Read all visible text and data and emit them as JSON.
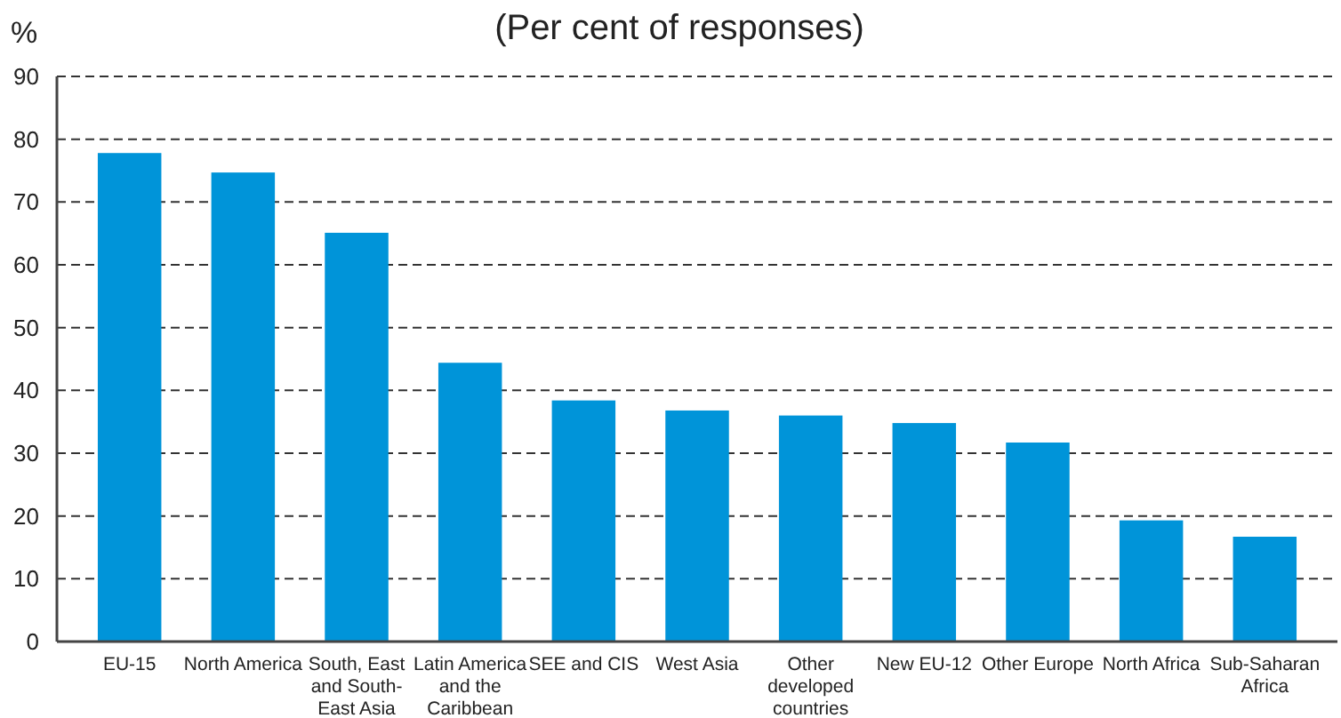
{
  "chart_data": {
    "type": "bar",
    "title": "(Per cent of responses)",
    "ylabel": "%",
    "categories": [
      "EU-15",
      "North America",
      "South, East and South-East Asia",
      "Latin America and the Caribbean",
      "SEE and CIS",
      "West Asia",
      "Other developed countries",
      "New EU-12",
      "Other Europe",
      "North Africa",
      "Sub-Saharan Africa"
    ],
    "values": [
      77.8,
      74.7,
      65.1,
      44.4,
      38.4,
      36.8,
      36.0,
      34.8,
      31.7,
      19.3,
      16.7
    ],
    "color": "#0094d9",
    "ylim": [
      0,
      90
    ],
    "yticks": [
      0,
      10,
      20,
      30,
      40,
      50,
      60,
      70,
      80,
      90
    ],
    "grid": "y"
  }
}
